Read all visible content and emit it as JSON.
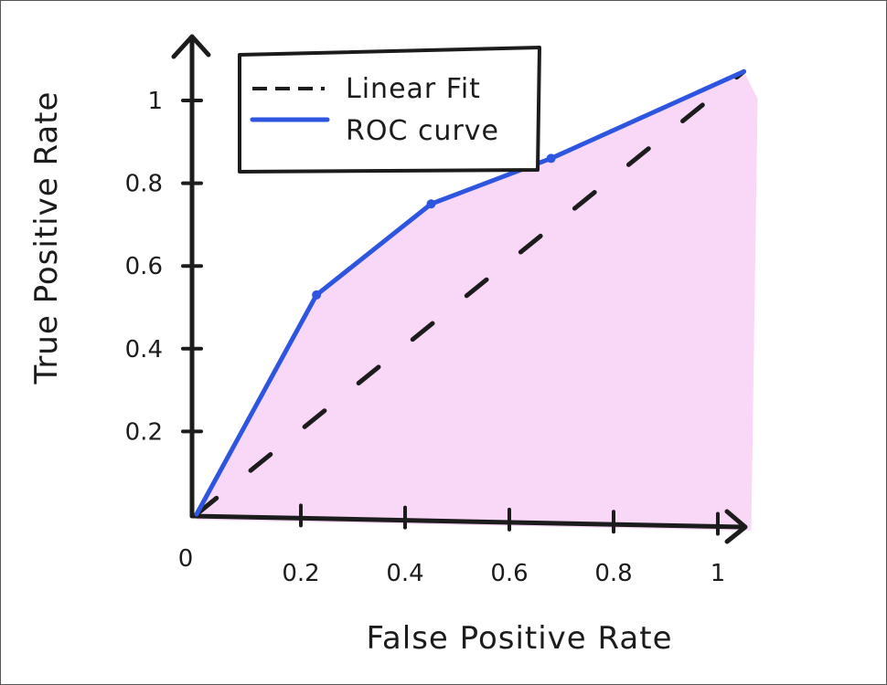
{
  "chart_data": {
    "type": "line",
    "xlabel": "False Positive Rate",
    "ylabel": "True Positive Rate",
    "xlim": [
      0,
      1.05
    ],
    "ylim": [
      0,
      1.05
    ],
    "x_ticks": [
      0.2,
      0.4,
      0.6,
      0.8,
      1
    ],
    "x_tick_labels": [
      "0.2",
      "0.4",
      "0.6",
      "0.8",
      "1"
    ],
    "y_ticks": [
      0.2,
      0.4,
      0.6,
      0.8,
      1
    ],
    "y_tick_labels": [
      "0.2",
      "0.4",
      "0.6",
      "0.8",
      "1"
    ],
    "origin_label": "0",
    "series": [
      {
        "name": "ROC curve",
        "style": "solid",
        "color": "#2e55e0",
        "x": [
          0.0,
          0.23,
          0.45,
          0.68,
          1.05
        ],
        "y": [
          0.0,
          0.53,
          0.75,
          0.86,
          1.07
        ]
      },
      {
        "name": "Linear Fit",
        "style": "dashed",
        "color": "#1c1c1c",
        "x": [
          0.0,
          1.05
        ],
        "y": [
          0.0,
          1.07
        ]
      }
    ],
    "area_fill_color": "#f9d7f6",
    "axis_color": "#1c1c1c",
    "legend_position": "top-left inside plot",
    "legend_entries": [
      "Linear Fit",
      "ROC curve"
    ],
    "grid": false
  }
}
